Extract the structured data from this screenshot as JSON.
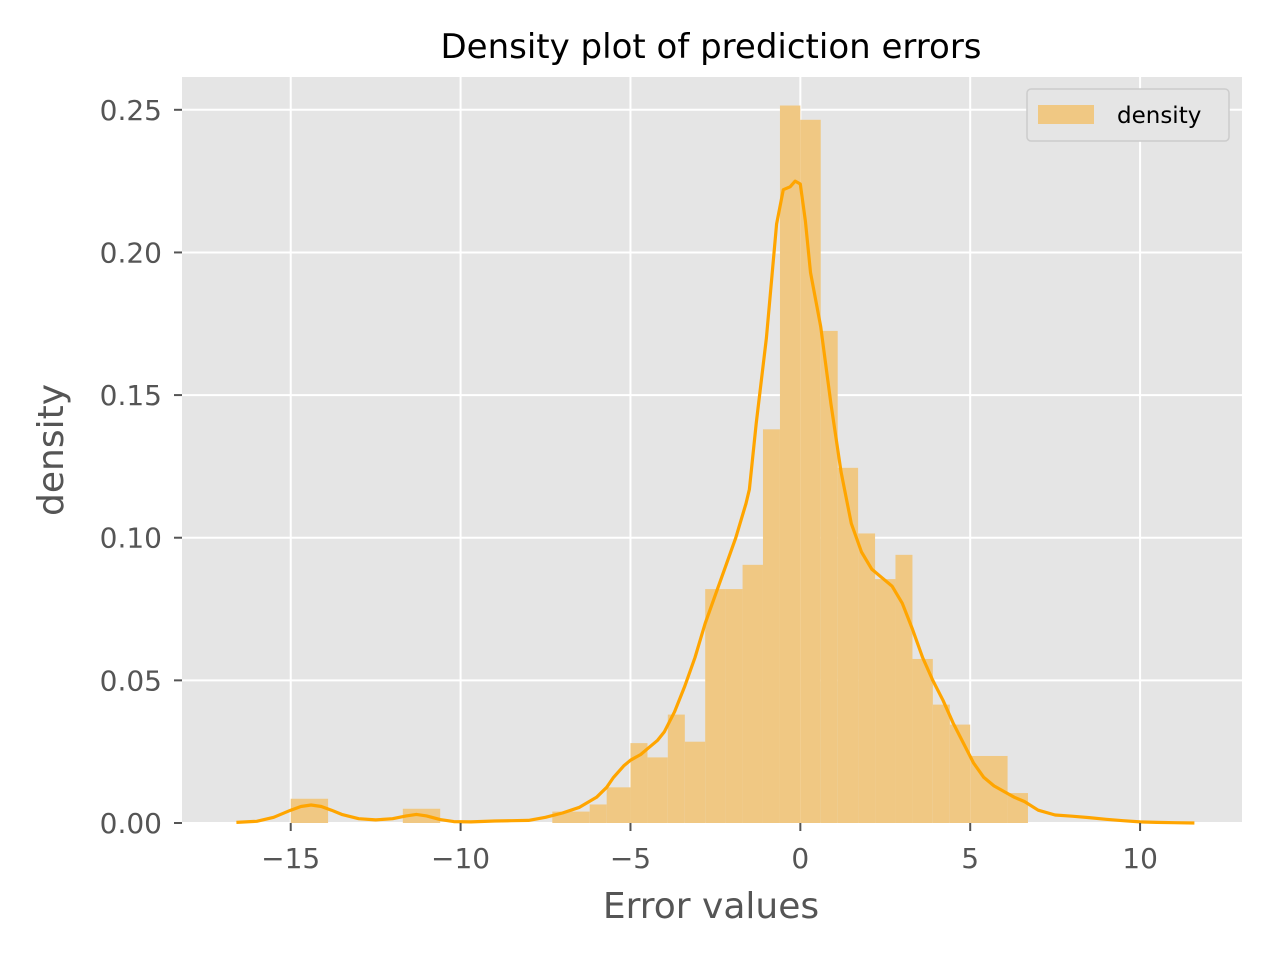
{
  "chart_data": {
    "type": "bar",
    "title": "Density plot of prediction errors",
    "xlabel": "Error values",
    "ylabel": "density",
    "xlim": [
      -18.2,
      13.0
    ],
    "ylim": [
      0,
      0.2615
    ],
    "x_ticks": [
      -15,
      -10,
      -5,
      0,
      5,
      10
    ],
    "x_tick_labels": [
      "−15",
      "−10",
      "−5",
      "0",
      "5",
      "10"
    ],
    "y_ticks": [
      0.0,
      0.05,
      0.1,
      0.15,
      0.2,
      0.25
    ],
    "y_tick_labels": [
      "0.00",
      "0.05",
      "0.10",
      "0.15",
      "0.20",
      "0.25"
    ],
    "grid": true,
    "legend": {
      "position": "top-right",
      "entries": [
        "density"
      ]
    },
    "colors": {
      "bars": "#f0c883",
      "kde": "#ffa500",
      "background": "#e5e5e5",
      "grid": "#ffffff"
    },
    "histogram": {
      "bin_edges": [
        -15.0,
        -13.9,
        -12.8,
        -11.7,
        -10.6,
        -9.5,
        -8.4,
        -7.3,
        -6.2,
        -5.7,
        -5.0,
        -4.5,
        -3.9,
        -3.4,
        -2.8,
        -2.2,
        -1.7,
        -1.1,
        -0.6,
        0.0,
        0.6,
        1.1,
        1.7,
        2.2,
        2.8,
        3.3,
        3.9,
        4.4,
        5.0,
        6.1,
        6.7
      ],
      "density": [
        0.0085,
        0.0,
        0.0,
        0.005,
        0.0,
        0.0,
        0.0,
        0.004,
        0.0065,
        0.0125,
        0.028,
        0.023,
        0.038,
        0.0285,
        0.082,
        0.082,
        0.0905,
        0.138,
        0.2515,
        0.2465,
        0.1725,
        0.1245,
        0.1015,
        0.0855,
        0.094,
        0.0575,
        0.0415,
        0.0345,
        0.0235,
        0.0105,
        0.0065
      ]
    },
    "kde": {
      "x": [
        -16.6,
        -16.0,
        -15.5,
        -15.0,
        -14.7,
        -14.4,
        -14.1,
        -13.8,
        -13.5,
        -13.0,
        -12.5,
        -12.0,
        -11.6,
        -11.3,
        -11.0,
        -10.6,
        -10.2,
        -9.7,
        -9.0,
        -8.5,
        -8.0,
        -7.5,
        -7.0,
        -6.5,
        -6.0,
        -5.7,
        -5.5,
        -5.2,
        -5.0,
        -4.7,
        -4.5,
        -4.2,
        -4.0,
        -3.7,
        -3.4,
        -3.1,
        -2.8,
        -2.5,
        -2.2,
        -1.9,
        -1.6,
        -1.5,
        -1.3,
        -1.0,
        -0.7,
        -0.5,
        -0.3,
        -0.15,
        0.0,
        0.15,
        0.3,
        0.6,
        0.9,
        1.2,
        1.5,
        1.8,
        2.1,
        2.4,
        2.7,
        3.0,
        3.3,
        3.6,
        3.9,
        4.2,
        4.5,
        4.8,
        5.1,
        5.4,
        5.7,
        6.0,
        6.3,
        6.6,
        7.0,
        7.5,
        8.0,
        8.5,
        9.0,
        9.5,
        10.0,
        10.5,
        11.0,
        11.6
      ],
      "y": [
        0.0002,
        0.0006,
        0.002,
        0.0045,
        0.0058,
        0.0063,
        0.0058,
        0.0045,
        0.003,
        0.0015,
        0.0011,
        0.0015,
        0.0025,
        0.003,
        0.0025,
        0.0012,
        0.0005,
        0.0004,
        0.0007,
        0.0008,
        0.0009,
        0.002,
        0.0035,
        0.0055,
        0.009,
        0.0125,
        0.016,
        0.02,
        0.022,
        0.024,
        0.026,
        0.029,
        0.032,
        0.039,
        0.048,
        0.058,
        0.07,
        0.08,
        0.09,
        0.1,
        0.112,
        0.117,
        0.14,
        0.17,
        0.21,
        0.222,
        0.223,
        0.225,
        0.224,
        0.211,
        0.193,
        0.174,
        0.147,
        0.123,
        0.105,
        0.095,
        0.089,
        0.086,
        0.083,
        0.077,
        0.068,
        0.058,
        0.05,
        0.043,
        0.035,
        0.028,
        0.021,
        0.016,
        0.013,
        0.011,
        0.009,
        0.0075,
        0.0045,
        0.0028,
        0.0024,
        0.0019,
        0.0013,
        0.0008,
        0.0004,
        0.0002,
        0.0001,
        0.0
      ]
    }
  }
}
